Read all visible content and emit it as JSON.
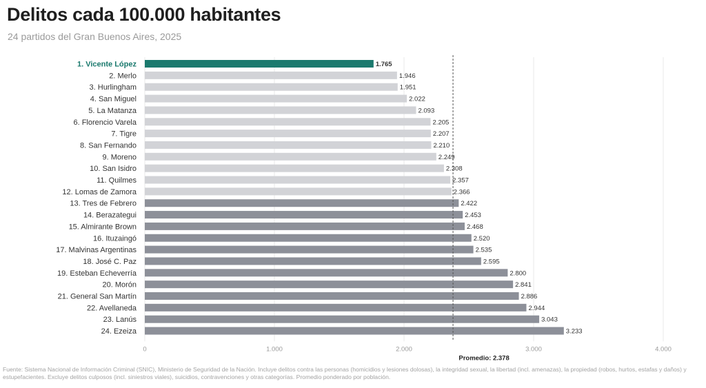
{
  "title": "Delitos cada 100.000 habitantes",
  "subtitle": "24 partidos del Gran Buenos Aires, 2025",
  "source": "Fuente: Sistema Nacional de Información Criminal (SNIC), Ministerio de Seguridad de la Nación. Incluye delitos contra las personas (homicidios y lesiones dolosas), la integridad sexual, la libertad (incl. amenazas), la propiedad (robos, hurtos, estafas y daños) y estupefacientes. Excluye delitos culposos (incl. siniestros viales), suicidios, contravenciones y otras categorías. Promedio ponderado por población.",
  "colors": {
    "highlight": "#1b7a6e",
    "below_average": "#d2d3d7",
    "above_average": "#8d9099",
    "average_line": "#555555",
    "grid": "#e8e8e8"
  },
  "chart_data": {
    "type": "bar",
    "orientation": "horizontal",
    "categories": [
      "1. Vicente López",
      "2. Merlo",
      "3. Hurlingham",
      "4. San Miguel",
      "5. La Matanza",
      "6. Florencio Varela",
      "7. Tigre",
      "8. San Fernando",
      "9. Moreno",
      "10. San Isidro",
      "11. Quilmes",
      "12. Lomas de Zamora",
      "13. Tres de Febrero",
      "14. Berazategui",
      "15. Almirante Brown",
      "16. Ituzaingó",
      "17. Malvinas Argentinas",
      "18. José C. Paz",
      "19. Esteban Echeverría",
      "20. Morón",
      "21. General San Martín",
      "22. Avellaneda",
      "23. Lanús",
      "24. Ezeiza"
    ],
    "values": [
      1765,
      1946,
      1951,
      2022,
      2093,
      2205,
      2207,
      2210,
      2249,
      2308,
      2357,
      2366,
      2422,
      2453,
      2468,
      2520,
      2535,
      2595,
      2800,
      2841,
      2886,
      2944,
      3043,
      3233
    ],
    "value_labels": [
      "1.765",
      "1.946",
      "1.951",
      "2.022",
      "2.093",
      "2.205",
      "2.207",
      "2.210",
      "2.249",
      "2.308",
      "2.357",
      "2.366",
      "2.422",
      "2.453",
      "2.468",
      "2.520",
      "2.535",
      "2.595",
      "2.800",
      "2.841",
      "2.886",
      "2.944",
      "3.043",
      "3.233"
    ],
    "xlim": [
      0,
      4000
    ],
    "xticks": [
      0,
      1000,
      2000,
      3000,
      4000
    ],
    "xtick_labels": [
      "0",
      "1.000",
      "2.000",
      "3.000",
      "4.000"
    ],
    "grid": true,
    "reference_line": {
      "value": 2378,
      "label": "Promedio: 2.378",
      "style": "dashed"
    },
    "highlight_index": 0
  }
}
